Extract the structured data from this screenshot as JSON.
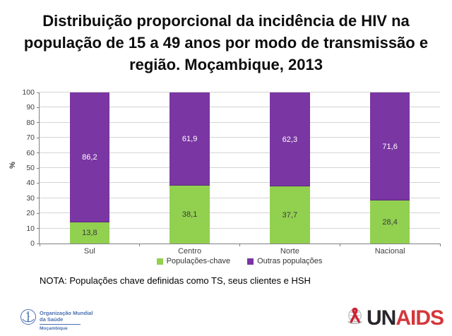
{
  "title": "Distribuição proporcional da incidência de HIV na população de 15 a 49 anos por modo de transmissão e região. Moçambique, 2013",
  "note": "NOTA: Populações chave definidas como TS, seus clientes e HSH",
  "chart_data": {
    "type": "bar",
    "subtype": "stacked-column-100pct",
    "title": "",
    "xlabel": "",
    "ylabel": "%",
    "categories": [
      "Sul",
      "Centro",
      "Norte",
      "Nacional"
    ],
    "series": [
      {
        "name": "Populações-chave",
        "color": "#92d050",
        "label_color": "#3a3a3a",
        "values": [
          13.8,
          38.1,
          37.7,
          28.4
        ]
      },
      {
        "name": "Outras populações",
        "color": "#7a36a3",
        "label_color": "#ffffff",
        "values": [
          86.2,
          61.9,
          62.3,
          71.6
        ]
      }
    ],
    "ylim": [
      0,
      100
    ],
    "ytick_step": 10,
    "grid": true,
    "gridline_color": "#d4d4d4",
    "axis_color": "#7f7f7f",
    "legend_position": "bottom",
    "decimal_separator": ","
  },
  "footer": {
    "who_logo": {
      "org_line1": "Organização Mundial",
      "org_line2": "da Saúde",
      "country": "Moçambique",
      "brand_color": "#4a70b0"
    },
    "unaids_logo": {
      "text_un": "UN",
      "text_aids": "AIDS",
      "un_color": "#29262b",
      "aids_color": "#d4373c",
      "ribbon_color": "#cf2030",
      "wreath_color": "#a8aeb4"
    }
  },
  "icons": {
    "who_emblem": "who-emblem-icon",
    "un_wreath": "un-wreath-icon",
    "aids_ribbon": "aids-ribbon-icon"
  }
}
